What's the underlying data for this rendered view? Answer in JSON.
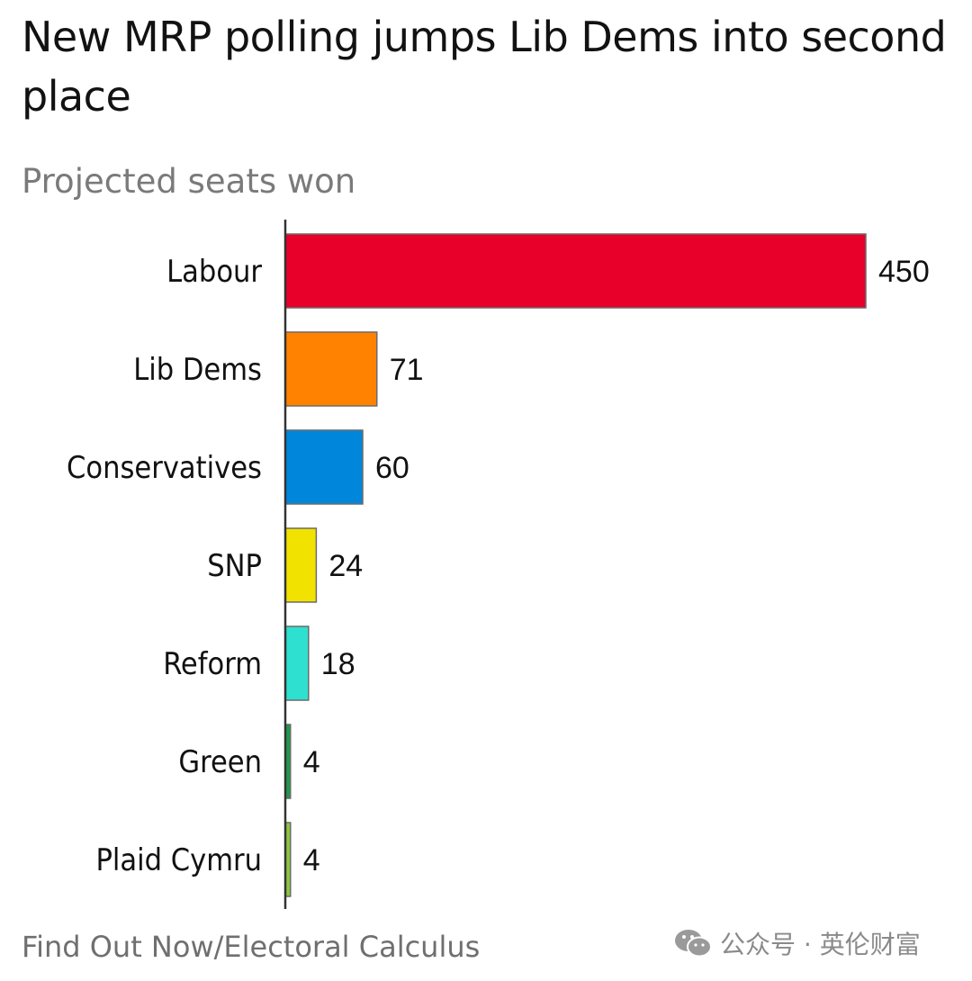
{
  "header": {
    "title": "New MRP polling jumps Lib Dems into second place",
    "subtitle": "Projected seats won"
  },
  "footer": {
    "source": "Find Out Now/Electoral Calculus",
    "watermark": "公众号 · 英伦财富"
  },
  "colors": {
    "bar_outline": "#6b6b6b",
    "axis": "#333333"
  },
  "chart_data": {
    "type": "bar",
    "orientation": "horizontal",
    "title": "New MRP polling jumps Lib Dems into second place",
    "subtitle": "Projected seats won",
    "categories": [
      "Labour",
      "Lib Dems",
      "Conservatives",
      "SNP",
      "Reform",
      "Green",
      "Plaid Cymru"
    ],
    "values": [
      450,
      71,
      60,
      24,
      18,
      4,
      4
    ],
    "bar_colors": [
      "#e8002a",
      "#ff8200",
      "#0087dc",
      "#f2e200",
      "#2ee0cf",
      "#1f9a4c",
      "#8cc63f"
    ],
    "xlim": [
      0,
      450
    ],
    "xlabel": "",
    "ylabel": "",
    "grid": false,
    "legend": "none",
    "data_labels": true
  }
}
